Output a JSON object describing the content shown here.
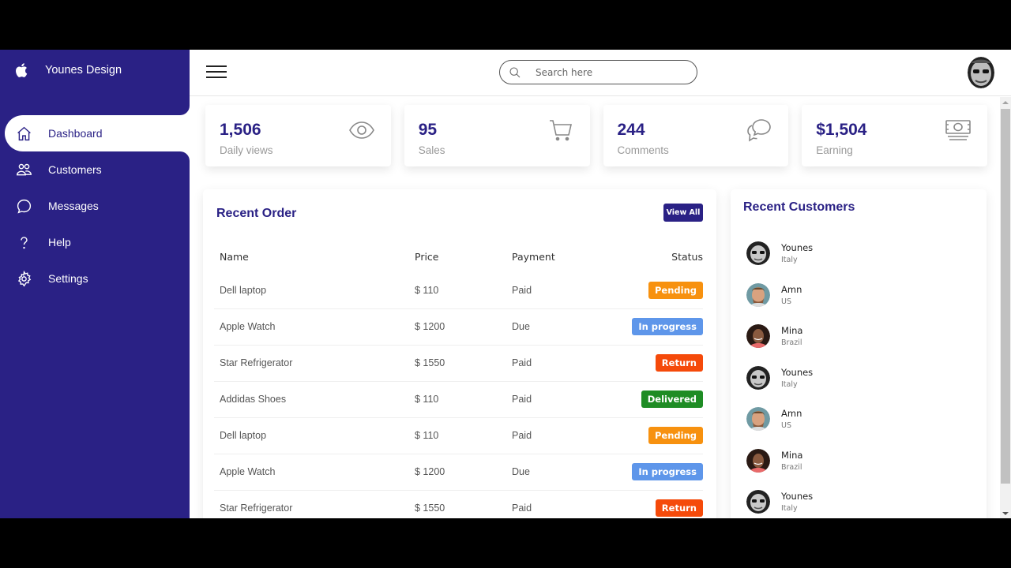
{
  "brand": {
    "name": "Younes Design",
    "icon": "apple-icon"
  },
  "sidebar": {
    "items": [
      {
        "label": "Dashboard",
        "icon": "home-icon",
        "active": true
      },
      {
        "label": "Customers",
        "icon": "people-icon",
        "active": false
      },
      {
        "label": "Messages",
        "icon": "chat-bubble-icon",
        "active": false
      },
      {
        "label": "Help",
        "icon": "help-icon",
        "active": false
      },
      {
        "label": "Settings",
        "icon": "gear-icon",
        "active": false
      }
    ]
  },
  "topbar": {
    "search": {
      "placeholder": "Search here",
      "value": ""
    }
  },
  "cards": [
    {
      "value": "1,506",
      "label": "Daily views",
      "icon": "eye-icon"
    },
    {
      "value": "95",
      "label": "Sales",
      "icon": "cart-icon"
    },
    {
      "value": "244",
      "label": "Comments",
      "icon": "chat-bubbles-icon"
    },
    {
      "value": "$1,504",
      "label": "Earning",
      "icon": "cash-icon"
    }
  ],
  "orders": {
    "title": "Recent Order",
    "view_all": "View All",
    "columns": [
      "Name",
      "Price",
      "Payment",
      "Status"
    ],
    "rows": [
      {
        "name": "Dell laptop",
        "price": "$ 110",
        "payment": "Paid",
        "status": "Pending"
      },
      {
        "name": "Apple Watch",
        "price": "$ 1200",
        "payment": "Due",
        "status": "In progress"
      },
      {
        "name": "Star Refrigerator",
        "price": "$ 1550",
        "payment": "Paid",
        "status": "Return"
      },
      {
        "name": "Addidas Shoes",
        "price": "$ 110",
        "payment": "Paid",
        "status": "Delivered"
      },
      {
        "name": "Dell laptop",
        "price": "$ 110",
        "payment": "Paid",
        "status": "Pending"
      },
      {
        "name": "Apple Watch",
        "price": "$ 1200",
        "payment": "Due",
        "status": "In progress"
      },
      {
        "name": "Star Refrigerator",
        "price": "$ 1550",
        "payment": "Paid",
        "status": "Return"
      }
    ],
    "status_colors": {
      "Pending": "#f7910f",
      "In progress": "#5e96ea",
      "Return": "#f54a0a",
      "Delivered": "#1e8c24"
    }
  },
  "customers": {
    "title": "Recent Customers",
    "items": [
      {
        "name": "Younes",
        "country": "Italy",
        "avatar": "bw"
      },
      {
        "name": "Amn",
        "country": "US",
        "avatar": "man"
      },
      {
        "name": "Mina",
        "country": "Brazil",
        "avatar": "woman"
      },
      {
        "name": "Younes",
        "country": "Italy",
        "avatar": "bw"
      },
      {
        "name": "Amn",
        "country": "US",
        "avatar": "man"
      },
      {
        "name": "Mina",
        "country": "Brazil",
        "avatar": "woman"
      },
      {
        "name": "Younes",
        "country": "Italy",
        "avatar": "bw"
      }
    ]
  },
  "colors": {
    "primary": "#2a2185",
    "muted_text": "#999999"
  }
}
